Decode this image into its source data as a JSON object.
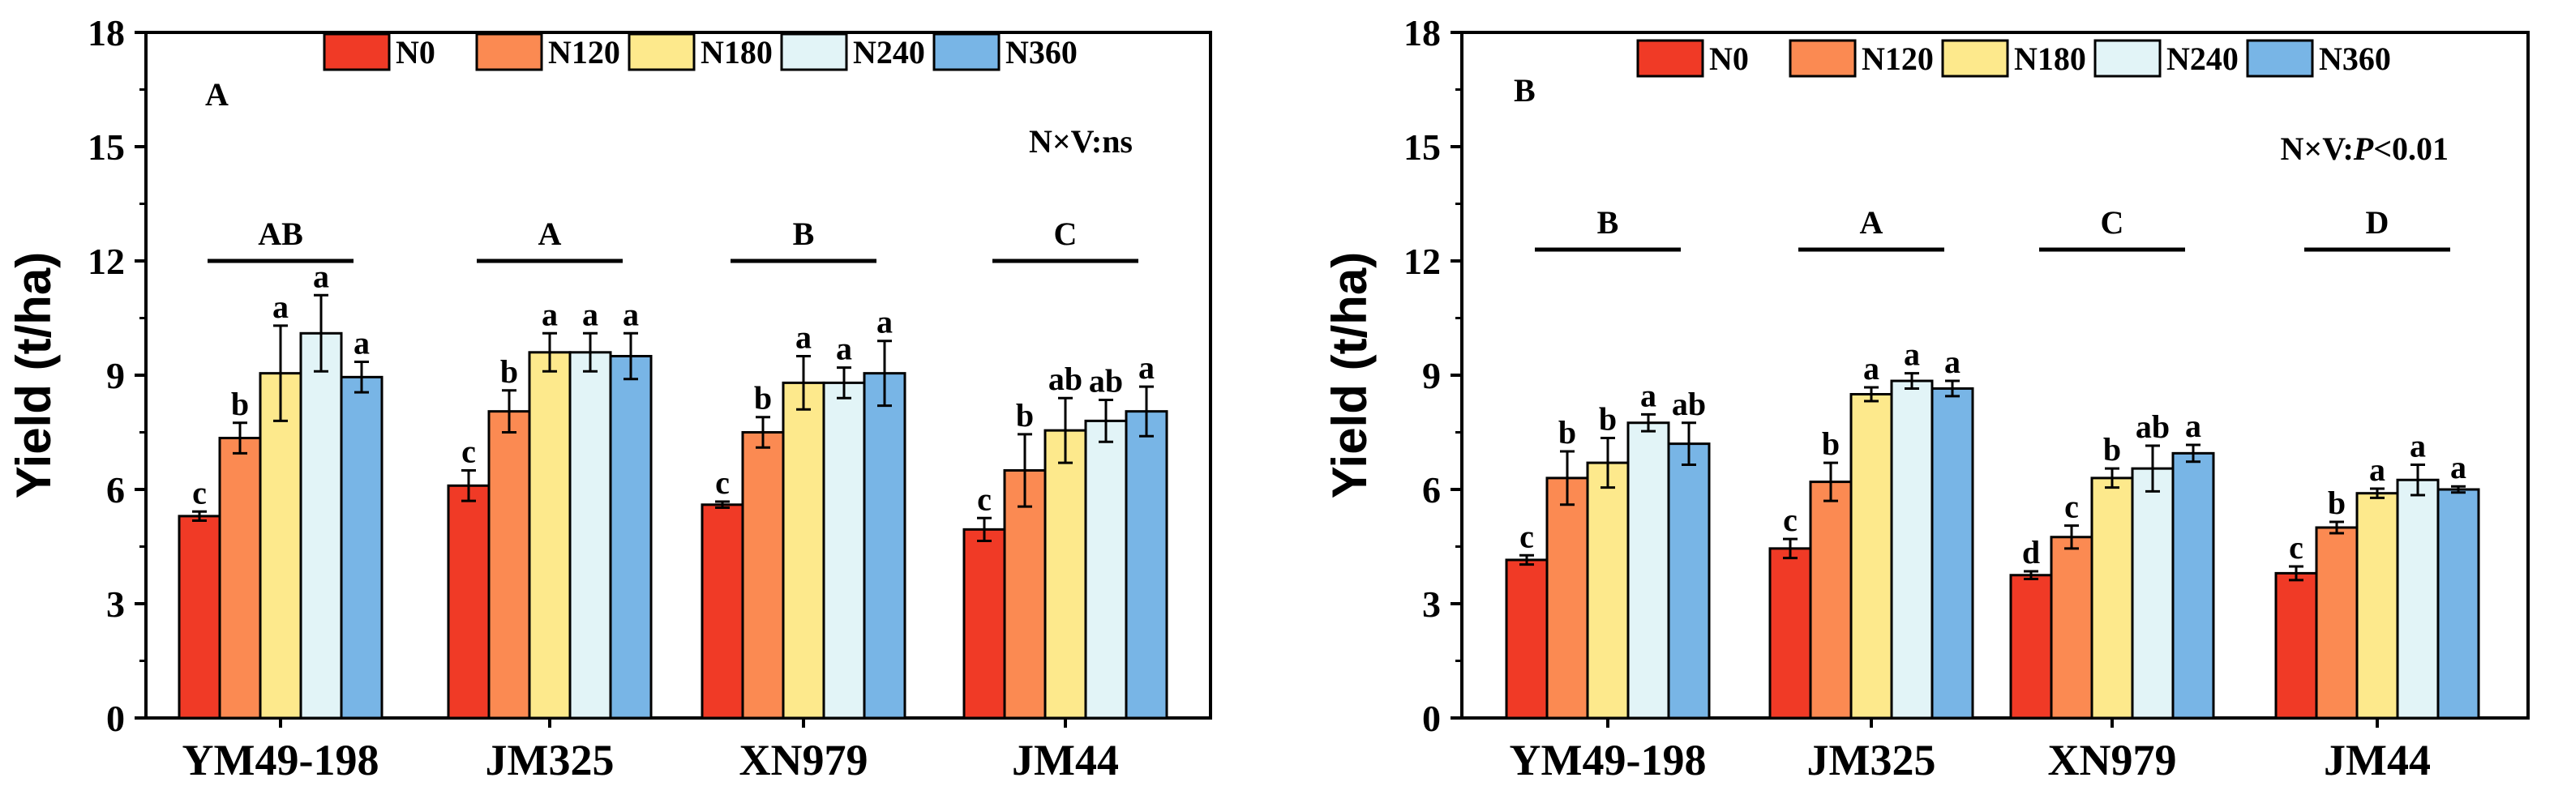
{
  "colors": {
    "N0": "#f03a26",
    "N120": "#fb8a52",
    "N180": "#fde98c",
    "N240": "#e2f4f7",
    "N360": "#78b5e6"
  },
  "legend": [
    "N0",
    "N120",
    "N180",
    "N240",
    "N360"
  ],
  "chart_data": [
    {
      "type": "bar",
      "panel": "A",
      "categories": [
        "YM49-198",
        "JM325",
        "XN979",
        "JM44"
      ],
      "ylabel": "Yield (t/ha)",
      "ylim": [
        0,
        18
      ],
      "yticks": [
        "0",
        "3",
        "6",
        "9",
        "12",
        "15",
        "18"
      ],
      "legend_placement": "top",
      "annotation": "N×V:ns",
      "annotation_parts": [
        "N×V:",
        "ns"
      ],
      "group_letters": [
        "AB",
        "A",
        "B",
        "C"
      ],
      "series": [
        {
          "name": "N0",
          "values": [
            5.3,
            6.1,
            5.6,
            4.95
          ],
          "errors": [
            0.12,
            0.4,
            0.08,
            0.3
          ],
          "letters": [
            "c",
            "c",
            "c",
            "c"
          ]
        },
        {
          "name": "N120",
          "values": [
            7.35,
            8.05,
            7.5,
            6.5
          ],
          "errors": [
            0.4,
            0.55,
            0.4,
            0.95
          ],
          "letters": [
            "b",
            "b",
            "b",
            "b"
          ]
        },
        {
          "name": "N180",
          "values": [
            9.05,
            9.6,
            8.8,
            7.55
          ],
          "errors": [
            1.25,
            0.5,
            0.7,
            0.85
          ],
          "letters": [
            "a",
            "a",
            "a",
            "ab"
          ]
        },
        {
          "name": "N240",
          "values": [
            10.1,
            9.6,
            8.8,
            7.8
          ],
          "errors": [
            1.0,
            0.5,
            0.4,
            0.55
          ],
          "letters": [
            "a",
            "a",
            "a",
            "ab"
          ]
        },
        {
          "name": "N360",
          "values": [
            8.95,
            9.5,
            9.05,
            8.05
          ],
          "errors": [
            0.4,
            0.6,
            0.85,
            0.65
          ],
          "letters": [
            "a",
            "a",
            "a",
            "a"
          ]
        }
      ]
    },
    {
      "type": "bar",
      "panel": "B",
      "categories": [
        "YM49-198",
        "JM325",
        "XN979",
        "JM44"
      ],
      "ylabel": "Yield (t/ha)",
      "ylim": [
        0,
        18
      ],
      "yticks": [
        "0",
        "3",
        "6",
        "9",
        "12",
        "15",
        "18"
      ],
      "legend_placement": "top",
      "annotation": "N×V:P<0.01",
      "annotation_parts": [
        "N×V:",
        "P",
        "<0.01"
      ],
      "group_letters": [
        "B",
        "A",
        "C",
        "D"
      ],
      "series": [
        {
          "name": "N0",
          "values": [
            4.15,
            4.45,
            3.75,
            3.8
          ],
          "errors": [
            0.12,
            0.25,
            0.1,
            0.18
          ],
          "letters": [
            "c",
            "c",
            "d",
            "c"
          ]
        },
        {
          "name": "N120",
          "values": [
            6.3,
            6.2,
            4.75,
            5.0
          ],
          "errors": [
            0.7,
            0.5,
            0.3,
            0.15
          ],
          "letters": [
            "b",
            "b",
            "c",
            "b"
          ]
        },
        {
          "name": "N180",
          "values": [
            6.7,
            8.5,
            6.3,
            5.9
          ],
          "errors": [
            0.65,
            0.18,
            0.25,
            0.12
          ],
          "letters": [
            "b",
            "a",
            "b",
            "a"
          ]
        },
        {
          "name": "N240",
          "values": [
            7.75,
            8.85,
            6.55,
            6.25
          ],
          "errors": [
            0.22,
            0.2,
            0.6,
            0.4
          ],
          "letters": [
            "a",
            "a",
            "ab",
            "a"
          ]
        },
        {
          "name": "N360",
          "values": [
            7.2,
            8.65,
            6.95,
            6.0
          ],
          "errors": [
            0.55,
            0.2,
            0.22,
            0.08
          ],
          "letters": [
            "ab",
            "a",
            "a",
            "a"
          ]
        }
      ]
    }
  ]
}
